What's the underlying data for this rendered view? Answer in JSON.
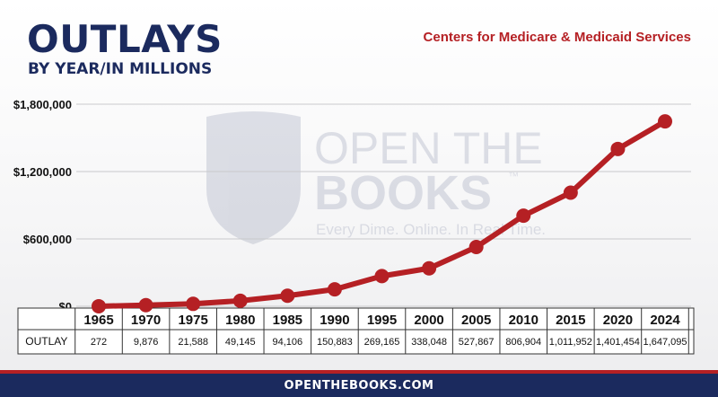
{
  "header": {
    "title": "OUTLAYS",
    "subtitle": "BY YEAR/IN MILLIONS",
    "agency": "Centers for Medicare & Medicaid Services"
  },
  "watermark": {
    "line1": "OPEN THE",
    "line2": "BOOKS",
    "tm": "™",
    "tagline": "Every Dime. Online. In Real Time."
  },
  "footer": {
    "site": "OPENTHEBOOKS.COM"
  },
  "colors": {
    "navy": "#1b2a5e",
    "red": "#b52024",
    "line": "#b52024"
  },
  "chart_data": {
    "type": "line",
    "title": "OUTLAYS",
    "subtitle": "BY YEAR/IN MILLIONS",
    "categories": [
      "1965",
      "1970",
      "1975",
      "1980",
      "1985",
      "1990",
      "1995",
      "2000",
      "2005",
      "2010",
      "2015",
      "2020",
      "2024"
    ],
    "series": [
      {
        "name": "OUTLAY",
        "values": [
          272,
          9876,
          21588,
          49145,
          94106,
          150883,
          269165,
          338048,
          527867,
          806904,
          1011952,
          1401454,
          1647095
        ]
      }
    ],
    "table_row_label": "OUTLAY",
    "table_values": [
      "272",
      "9,876",
      "21,588",
      "49,145",
      "94,106",
      "150,883",
      "269,165",
      "338,048",
      "527,867",
      "806,904",
      "1,011,952",
      "1,401,454",
      "1,647,095"
    ],
    "yticks": [
      0,
      600000,
      1200000,
      1800000
    ],
    "ytick_labels": [
      "$0",
      "$600,000",
      "$1,200,000",
      "$1,800,000"
    ],
    "ylim": [
      0,
      1800000
    ],
    "grid": true
  }
}
